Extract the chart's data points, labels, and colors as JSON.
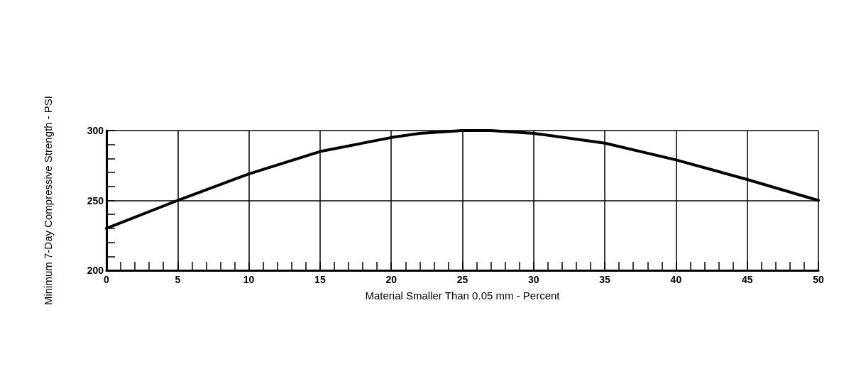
{
  "chart_data": {
    "type": "line",
    "xlabel": "Material Smaller Than 0.05 mm - Percent",
    "ylabel": "Minimum 7-Day Compressive Strength - PSI",
    "x": [
      0,
      5,
      10,
      15,
      20,
      22,
      25,
      27,
      30,
      35,
      40,
      45,
      50
    ],
    "series": [
      {
        "color": "#000000",
        "values": [
          230,
          250,
          269,
          285,
          295,
          298,
          300,
          300,
          298,
          291,
          279,
          265,
          250
        ]
      }
    ],
    "xlim": [
      0,
      50
    ],
    "xticks": [
      0,
      {
        "value": 1,
        "label": null
      },
      {
        "value": 2,
        "label": null
      },
      {
        "value": 3,
        "label": null
      },
      {
        "value": 4,
        "label": null
      },
      5,
      {
        "value": 6,
        "label": null
      },
      {
        "value": 7,
        "label": null
      },
      {
        "value": 8,
        "label": null
      },
      {
        "value": 9,
        "label": null
      },
      10,
      {
        "value": 11,
        "label": null
      },
      {
        "value": 12,
        "label": null
      },
      {
        "value": 13,
        "label": null
      },
      {
        "value": 14,
        "label": null
      },
      15,
      {
        "value": 16,
        "label": null
      },
      {
        "value": 17,
        "label": null
      },
      {
        "value": 18,
        "label": null
      },
      {
        "value": 19,
        "label": null
      },
      20,
      {
        "value": 21,
        "label": null
      },
      {
        "value": 22,
        "label": null
      },
      {
        "value": 23,
        "label": null
      },
      {
        "value": 24,
        "label": null
      },
      25,
      {
        "value": 26,
        "label": null
      },
      {
        "value": 27,
        "label": null
      },
      {
        "value": 28,
        "label": null
      },
      {
        "value": 29,
        "label": null
      },
      30,
      {
        "value": 31,
        "label": null
      },
      {
        "value": 32,
        "label": null
      },
      {
        "value": 33,
        "label": null
      },
      {
        "value": 34,
        "label": null
      },
      35,
      {
        "value": 36,
        "label": null
      },
      {
        "value": 37,
        "label": null
      },
      {
        "value": 38,
        "label": null
      },
      {
        "value": 39,
        "label": null
      },
      40,
      {
        "value": 41,
        "label": null
      },
      {
        "value": 42,
        "label": null
      },
      {
        "value": 43,
        "label": null
      },
      {
        "value": 44,
        "label": null
      },
      45,
      {
        "value": 46,
        "label": null
      },
      {
        "value": 47,
        "label": null
      },
      {
        "value": 48,
        "label": null
      },
      {
        "value": 49,
        "label": null
      },
      50
    ],
    "ylim": [
      200,
      300
    ],
    "yticks": [
      200,
      {
        "value": 210,
        "label": null
      },
      {
        "value": 220,
        "label": null
      },
      {
        "value": 230,
        "label": null
      },
      {
        "value": 240,
        "label": null
      },
      250,
      {
        "value": 260,
        "label": null
      },
      {
        "value": 270,
        "label": null
      },
      {
        "value": 280,
        "label": null
      },
      {
        "value": 290,
        "label": null
      },
      300
    ],
    "grid": true,
    "marker": "none",
    "line_style": "solid"
  }
}
